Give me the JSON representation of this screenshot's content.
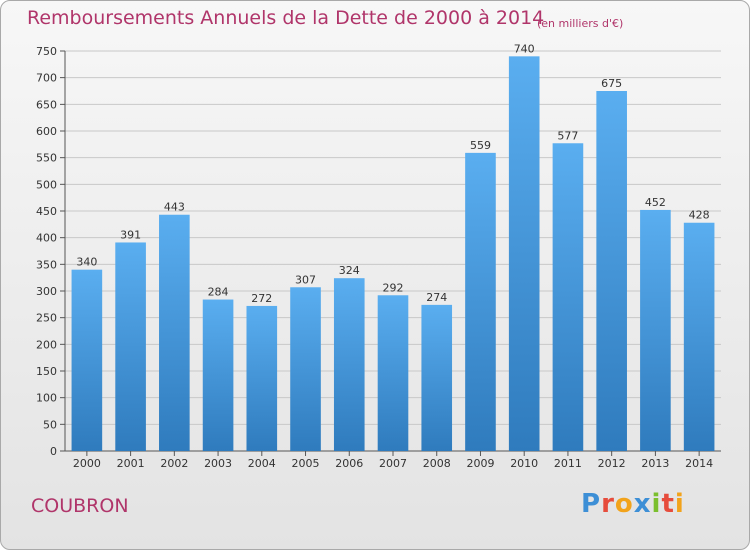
{
  "title": "Remboursements Annuels de la Dette de 2000 à 2014",
  "subtitle": "(en milliers d'€)",
  "town": "COUBRON",
  "logo": {
    "text": "Proxiti",
    "letters": [
      {
        "ch": "P",
        "color": "#3d8fd6"
      },
      {
        "ch": "r",
        "color": "#e64c3c"
      },
      {
        "ch": "o",
        "color": "#f2a31b"
      },
      {
        "ch": "x",
        "color": "#3d8fd6"
      },
      {
        "ch": "i",
        "color": "#7bbf2e"
      },
      {
        "ch": "t",
        "color": "#e64c3c"
      },
      {
        "ch": "i",
        "color": "#f2a31b"
      }
    ]
  },
  "colors": {
    "title": "#b0356a",
    "bar_top": "#5aaef0",
    "bar_bottom": "#2f7bbd",
    "grid": "#c8c8c8"
  },
  "chart_data": {
    "type": "bar",
    "title": "Remboursements Annuels de la Dette de 2000 à 2014",
    "subtitle": "(en milliers d'€)",
    "xlabel": "",
    "ylabel": "",
    "categories": [
      "2000",
      "2001",
      "2002",
      "2003",
      "2004",
      "2005",
      "2006",
      "2007",
      "2008",
      "2009",
      "2010",
      "2011",
      "2012",
      "2013",
      "2014"
    ],
    "values": [
      340,
      391,
      443,
      284,
      272,
      307,
      324,
      292,
      274,
      559,
      740,
      577,
      675,
      452,
      428
    ],
    "ylim": [
      0,
      750
    ],
    "yticks": [
      0,
      50,
      100,
      150,
      200,
      250,
      300,
      350,
      400,
      450,
      500,
      550,
      600,
      650,
      700,
      750
    ],
    "grid": true,
    "data_labels": true
  }
}
